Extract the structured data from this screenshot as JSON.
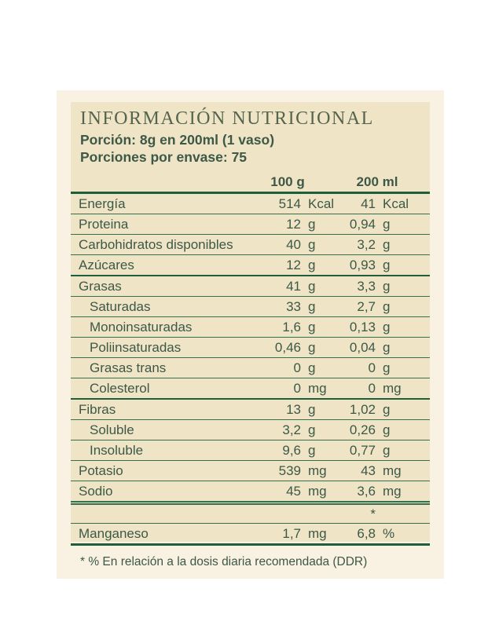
{
  "colors": {
    "outer_bg": "#f9f1e1",
    "inner_bg": "#efe5c6",
    "line_green": "#35704c",
    "line_dark": "#1f5e3a",
    "text_green": "#3d5847",
    "title_green": "#55644f"
  },
  "panel": {
    "title": "INFORMACIÓN NUTRICIONAL",
    "portion_line": "Porción: 8g en 200ml (1 vaso)",
    "servings_line": "Porciones por envase: 75",
    "columns": [
      "100 g",
      "200 ml"
    ],
    "footnote": "* % En relación a la dosis diaria recomendada (DDR)"
  },
  "table": {
    "rows": [
      {
        "label": "Energía",
        "indent": false,
        "v1": "514",
        "u1": "Kcal",
        "v2": "41",
        "u2": "Kcal",
        "sep": "thin"
      },
      {
        "label": "Proteina",
        "indent": false,
        "v1": "12",
        "u1": "g",
        "v2": "0,94",
        "u2": "g",
        "sep": "thin"
      },
      {
        "label": "Carbohidratos disponibles",
        "indent": false,
        "v1": "40",
        "u1": "g",
        "v2": "3,2",
        "u2": "g",
        "sep": "thin"
      },
      {
        "label": "Azúcares",
        "indent": false,
        "v1": "12",
        "u1": "g",
        "v2": "0,93",
        "u2": "g",
        "sep": "thick"
      },
      {
        "label": "Grasas",
        "indent": false,
        "v1": "41",
        "u1": "g",
        "v2": "3,3",
        "u2": "g",
        "sep": "thin"
      },
      {
        "label": "Saturadas",
        "indent": true,
        "v1": "33",
        "u1": "g",
        "v2": "2,7",
        "u2": "g",
        "sep": "thin"
      },
      {
        "label": "Monoinsaturadas",
        "indent": true,
        "v1": "1,6",
        "u1": "g",
        "v2": "0,13",
        "u2": "g",
        "sep": "thin"
      },
      {
        "label": "Poliinsaturadas",
        "indent": true,
        "v1": "0,46",
        "u1": "g",
        "v2": "0,04",
        "u2": "g",
        "sep": "thin"
      },
      {
        "label": "Grasas trans",
        "indent": true,
        "v1": "0",
        "u1": "g",
        "v2": "0",
        "u2": "g",
        "sep": "thin"
      },
      {
        "label": "Colesterol",
        "indent": true,
        "v1": "0",
        "u1": "mg",
        "v2": "0",
        "u2": "mg",
        "sep": "thick"
      },
      {
        "label": "Fibras",
        "indent": false,
        "v1": "13",
        "u1": "g",
        "v2": "1,02",
        "u2": "g",
        "sep": "thin"
      },
      {
        "label": "Soluble",
        "indent": true,
        "v1": "3,2",
        "u1": "g",
        "v2": "0,26",
        "u2": "g",
        "sep": "thin"
      },
      {
        "label": "Insoluble",
        "indent": true,
        "v1": "9,6",
        "u1": "g",
        "v2": "0,77",
        "u2": "g",
        "sep": "thin"
      },
      {
        "label": "Potasio",
        "indent": false,
        "v1": "539",
        "u1": "mg",
        "v2": "43",
        "u2": "mg",
        "sep": "thin"
      },
      {
        "label": "Sodio",
        "indent": false,
        "v1": "45",
        "u1": "mg",
        "v2": "3,6",
        "u2": "mg",
        "sep": "double"
      },
      {
        "label": "",
        "indent": false,
        "v1": "",
        "u1": "",
        "v2": "*",
        "u2": "",
        "sep": "thin",
        "note": true
      },
      {
        "label": "Manganeso",
        "indent": false,
        "v1": "1,7",
        "u1": "mg",
        "v2": "6,8",
        "u2": "%",
        "sep": "final"
      }
    ]
  }
}
